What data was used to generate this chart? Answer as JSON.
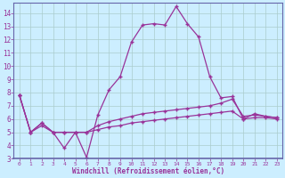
{
  "xlabel": "Windchill (Refroidissement éolien,°C)",
  "background_color": "#cceeff",
  "grid_color": "#aacccc",
  "line_color": "#993399",
  "border_color": "#6666aa",
  "x_values": [
    0,
    1,
    2,
    3,
    4,
    5,
    6,
    7,
    8,
    9,
    10,
    11,
    12,
    13,
    14,
    15,
    16,
    17,
    18,
    19,
    20,
    21,
    22,
    23
  ],
  "series1": [
    7.8,
    5.0,
    5.7,
    5.0,
    3.8,
    5.0,
    3.1,
    6.3,
    8.2,
    9.2,
    11.8,
    13.1,
    13.2,
    13.1,
    14.5,
    13.2,
    12.2,
    9.2,
    7.6,
    7.7,
    6.0,
    6.4,
    6.2,
    6.1
  ],
  "series2": [
    7.8,
    5.0,
    5.7,
    5.0,
    5.0,
    5.0,
    5.0,
    5.5,
    5.8,
    6.0,
    6.2,
    6.4,
    6.5,
    6.6,
    6.7,
    6.8,
    6.9,
    7.0,
    7.2,
    7.5,
    6.2,
    6.3,
    6.2,
    6.1
  ],
  "series3": [
    7.8,
    5.0,
    5.5,
    5.0,
    5.0,
    5.0,
    5.0,
    5.2,
    5.4,
    5.5,
    5.7,
    5.8,
    5.9,
    6.0,
    6.1,
    6.2,
    6.3,
    6.4,
    6.5,
    6.6,
    6.0,
    6.1,
    6.1,
    6.0
  ],
  "ylim": [
    3,
    14.8
  ],
  "yticks": [
    3,
    4,
    5,
    6,
    7,
    8,
    9,
    10,
    11,
    12,
    13,
    14
  ],
  "xlim": [
    -0.5,
    23.5
  ],
  "xticks": [
    0,
    1,
    2,
    3,
    4,
    5,
    6,
    7,
    8,
    9,
    10,
    11,
    12,
    13,
    14,
    15,
    16,
    17,
    18,
    19,
    20,
    21,
    22,
    23
  ]
}
